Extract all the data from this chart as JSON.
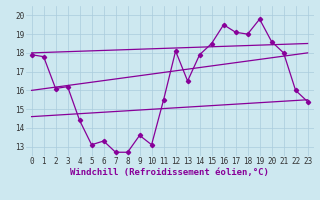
{
  "xlabel": "Windchill (Refroidissement éolien,°C)",
  "bg_color": "#cde8f0",
  "line_color": "#880099",
  "grid_color": "#aaccdd",
  "xlim": [
    -0.5,
    23.5
  ],
  "ylim": [
    12.5,
    20.5
  ],
  "xticks": [
    0,
    1,
    2,
    3,
    4,
    5,
    6,
    7,
    8,
    9,
    10,
    11,
    12,
    13,
    14,
    15,
    16,
    17,
    18,
    19,
    20,
    21,
    22,
    23
  ],
  "yticks": [
    13,
    14,
    15,
    16,
    17,
    18,
    19,
    20
  ],
  "series1_x": [
    0,
    1,
    2,
    3,
    4,
    5,
    6,
    7,
    8,
    9,
    10,
    11,
    12,
    13,
    14,
    15,
    16,
    17,
    18,
    19,
    20,
    21,
    22,
    23
  ],
  "series1_y": [
    17.9,
    17.8,
    16.1,
    16.2,
    14.4,
    13.1,
    13.3,
    12.7,
    12.7,
    13.6,
    13.1,
    15.5,
    18.1,
    16.5,
    17.9,
    18.5,
    19.5,
    19.1,
    19.0,
    19.8,
    18.6,
    18.0,
    16.0,
    15.4
  ],
  "series2_x": [
    0,
    23
  ],
  "series2_y": [
    18.0,
    18.5
  ],
  "series3_x": [
    0,
    23
  ],
  "series3_y": [
    16.0,
    18.0
  ],
  "series4_x": [
    0,
    23
  ],
  "series4_y": [
    14.6,
    15.5
  ],
  "figsize": [
    3.2,
    2.0
  ],
  "dpi": 100,
  "tick_fontsize": 5.5,
  "xlabel_fontsize": 6.5,
  "linewidth": 0.9,
  "marker": "D",
  "markersize": 2.2
}
